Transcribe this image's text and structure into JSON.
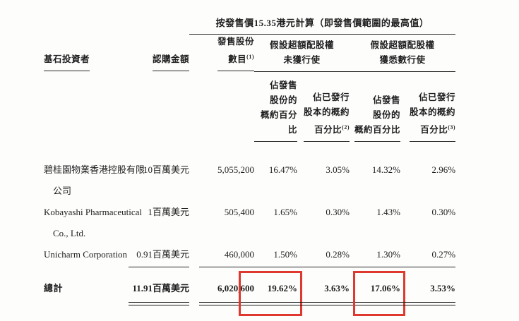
{
  "header": {
    "price_basis_title": "按發售價15.35港元計算（即發售價範圍的最高值）",
    "columns": {
      "investor": "基石投資者",
      "subscription_amount": "認購金額",
      "offer_shares_line1": "發售股份",
      "offer_shares_line2": "數目",
      "offer_shares_note": "(1)",
      "group_no_exercise_line1": "假設超額配股權",
      "group_no_exercise_line2": "未獲行使",
      "group_full_exercise_line1": "假設超額配股權",
      "group_full_exercise_line2": "獲悉數行使",
      "pct_offer_line1": "佔發售",
      "pct_offer_line2": "股份的",
      "pct_offer_line3": "概約百分比",
      "pct_issued_line1": "佔已發行",
      "pct_issued_line2": "股本的概約",
      "pct_issued_line3": "百分比",
      "pct_issued_note2": "(2)",
      "pct_issued_note3": "(3)"
    }
  },
  "rows": [
    {
      "name": "碧桂園物業香港控股有限公司",
      "subscription": "10百萬美元",
      "offer_shares": "5,055,200",
      "pct_offer_no_exercise": "16.47%",
      "pct_issued_no_exercise": "3.05%",
      "pct_offer_full_exercise": "14.32%",
      "pct_issued_full_exercise": "2.96%"
    },
    {
      "name": "Kobayashi Pharmaceutical Co., Ltd.",
      "subscription": "1百萬美元",
      "offer_shares": "505,400",
      "pct_offer_no_exercise": "1.65%",
      "pct_issued_no_exercise": "0.30%",
      "pct_offer_full_exercise": "1.43%",
      "pct_issued_full_exercise": "0.30%"
    },
    {
      "name": "Unicharm Corporation",
      "subscription": "0.91百萬美元",
      "offer_shares": "460,000",
      "pct_offer_no_exercise": "1.50%",
      "pct_issued_no_exercise": "0.28%",
      "pct_offer_full_exercise": "1.30%",
      "pct_issued_full_exercise": "0.27%"
    }
  ],
  "total": {
    "label": "總計",
    "subscription": "11.91百萬美元",
    "offer_shares": "6,020,600",
    "pct_offer_no_exercise": "19.62%",
    "pct_issued_no_exercise": "3.63%",
    "pct_offer_full_exercise": "17.06%",
    "pct_issued_full_exercise": "3.53%"
  },
  "annotations": {
    "highlight_box_color": "#df382e",
    "highlighted_values": [
      "19.62%",
      "17.06%"
    ]
  }
}
